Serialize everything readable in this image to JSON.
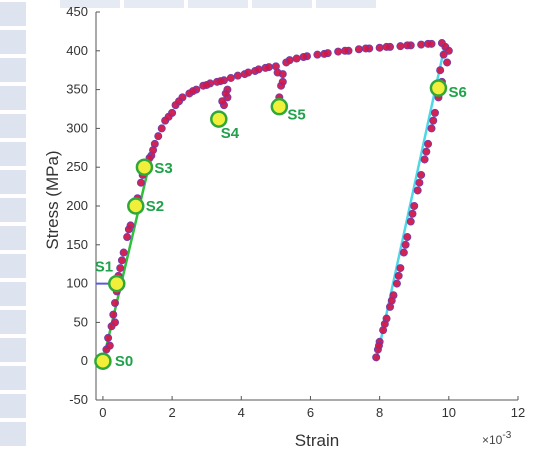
{
  "chart_data": {
    "type": "scatter",
    "title": "",
    "xlabel": "Strain",
    "ylabel": "Stress (MPa)",
    "x_multiplier": "×10",
    "x_multiplier_exp": "-3",
    "xlim": [
      -0.2,
      12
    ],
    "ylim": [
      -50,
      450
    ],
    "xticks": [
      "0",
      "2",
      "4",
      "6",
      "8",
      "10",
      "12"
    ],
    "yticks": [
      "-50",
      "0",
      "50",
      "100",
      "150",
      "200",
      "250",
      "300",
      "350",
      "400",
      "450"
    ],
    "grid": false,
    "legend": "none",
    "colors": {
      "points": "#d0174a",
      "points_edge": "#6a3fb0",
      "fit_loading": "#2fbf3a",
      "fit_unloading": "#4fd7e6",
      "preload": "#5a5ad8",
      "annotation_fill": "#f2ef3a",
      "annotation_stroke": "#2fa83a",
      "annotation_text": "#1fa24a"
    },
    "annotations": [
      {
        "label": "S0",
        "x": 0.0,
        "y": 0
      },
      {
        "label": "S1",
        "x": 0.4,
        "y": 100
      },
      {
        "label": "S2",
        "x": 0.95,
        "y": 200
      },
      {
        "label": "S3",
        "x": 1.2,
        "y": 250
      },
      {
        "label": "S4",
        "x": 3.35,
        "y": 312
      },
      {
        "label": "S5",
        "x": 5.1,
        "y": 328
      },
      {
        "label": "S6",
        "x": 9.7,
        "y": 352
      }
    ],
    "series": [
      {
        "fit_lines": [
          {
            "x": [
              0.0,
              1.4
            ],
            "y": [
              0,
              265
            ]
          },
          {
            "x": [
              7.9,
              9.9
            ],
            "y": [
              0,
              410
            ]
          }
        ],
        "preload_line": {
          "x": [
            -0.2,
            0.35
          ],
          "y": [
            100,
            100
          ]
        },
        "points": [
          [
            0.0,
            0
          ],
          [
            0.1,
            15
          ],
          [
            0.15,
            30
          ],
          [
            0.25,
            45
          ],
          [
            0.3,
            60
          ],
          [
            0.35,
            75
          ],
          [
            0.4,
            90
          ],
          [
            0.45,
            110
          ],
          [
            0.5,
            120
          ],
          [
            0.6,
            140
          ],
          [
            0.7,
            160
          ],
          [
            0.8,
            175
          ],
          [
            0.9,
            195
          ],
          [
            1.0,
            210
          ],
          [
            1.1,
            230
          ],
          [
            1.2,
            245
          ],
          [
            1.3,
            255
          ],
          [
            1.4,
            265
          ],
          [
            1.5,
            280
          ],
          [
            1.6,
            290
          ],
          [
            1.7,
            300
          ],
          [
            1.8,
            310
          ],
          [
            2.0,
            320
          ],
          [
            2.1,
            330
          ],
          [
            2.3,
            340
          ],
          [
            2.5,
            345
          ],
          [
            2.7,
            350
          ],
          [
            2.9,
            355
          ],
          [
            3.1,
            358
          ],
          [
            3.3,
            360
          ],
          [
            3.5,
            362
          ],
          [
            3.6,
            350
          ],
          [
            3.6,
            340
          ],
          [
            3.5,
            330
          ],
          [
            3.7,
            365
          ],
          [
            3.9,
            368
          ],
          [
            4.1,
            370
          ],
          [
            4.4,
            374
          ],
          [
            4.7,
            378
          ],
          [
            5.0,
            380
          ],
          [
            5.2,
            370
          ],
          [
            5.15,
            355
          ],
          [
            5.1,
            340
          ],
          [
            5.3,
            385
          ],
          [
            5.6,
            390
          ],
          [
            5.9,
            393
          ],
          [
            6.2,
            395
          ],
          [
            6.5,
            397
          ],
          [
            6.8,
            399
          ],
          [
            7.1,
            400
          ],
          [
            7.4,
            402
          ],
          [
            7.7,
            403
          ],
          [
            8.0,
            404
          ],
          [
            8.3,
            405
          ],
          [
            8.6,
            406
          ],
          [
            8.9,
            407
          ],
          [
            9.2,
            408
          ],
          [
            9.5,
            409
          ],
          [
            9.8,
            410
          ],
          [
            9.9,
            405
          ],
          [
            10.0,
            400
          ],
          [
            9.95,
            385
          ],
          [
            9.8,
            360
          ],
          [
            9.7,
            340
          ],
          [
            9.6,
            320
          ],
          [
            9.5,
            300
          ],
          [
            9.4,
            280
          ],
          [
            9.3,
            260
          ],
          [
            9.2,
            240
          ],
          [
            9.1,
            220
          ],
          [
            9.0,
            200
          ],
          [
            8.9,
            180
          ],
          [
            8.8,
            160
          ],
          [
            8.7,
            140
          ],
          [
            8.6,
            120
          ],
          [
            8.5,
            100
          ],
          [
            8.4,
            85
          ],
          [
            8.3,
            70
          ],
          [
            8.2,
            55
          ],
          [
            8.1,
            40
          ],
          [
            8.0,
            25
          ],
          [
            7.95,
            15
          ],
          [
            7.9,
            5
          ],
          [
            0.2,
            20
          ],
          [
            0.35,
            50
          ],
          [
            0.55,
            130
          ],
          [
            0.75,
            170
          ],
          [
            0.95,
            205
          ],
          [
            1.15,
            240
          ],
          [
            1.35,
            262
          ],
          [
            1.45,
            272
          ],
          [
            1.9,
            315
          ],
          [
            2.2,
            335
          ],
          [
            2.6,
            348
          ],
          [
            3.0,
            356
          ],
          [
            3.4,
            361
          ],
          [
            3.55,
            345
          ],
          [
            3.45,
            335
          ],
          [
            4.2,
            372
          ],
          [
            4.5,
            376
          ],
          [
            4.8,
            379
          ],
          [
            5.05,
            372
          ],
          [
            5.2,
            360
          ],
          [
            5.4,
            388
          ],
          [
            5.8,
            392
          ],
          [
            6.4,
            396
          ],
          [
            7.0,
            400
          ],
          [
            7.6,
            403
          ],
          [
            8.2,
            405
          ],
          [
            8.8,
            407
          ],
          [
            9.4,
            409
          ],
          [
            9.85,
            395
          ],
          [
            9.75,
            375
          ],
          [
            9.55,
            310
          ],
          [
            9.35,
            270
          ],
          [
            9.15,
            230
          ],
          [
            8.95,
            190
          ],
          [
            8.75,
            150
          ],
          [
            8.55,
            110
          ],
          [
            8.35,
            78
          ],
          [
            8.15,
            48
          ],
          [
            7.98,
            20
          ]
        ]
      }
    ]
  }
}
